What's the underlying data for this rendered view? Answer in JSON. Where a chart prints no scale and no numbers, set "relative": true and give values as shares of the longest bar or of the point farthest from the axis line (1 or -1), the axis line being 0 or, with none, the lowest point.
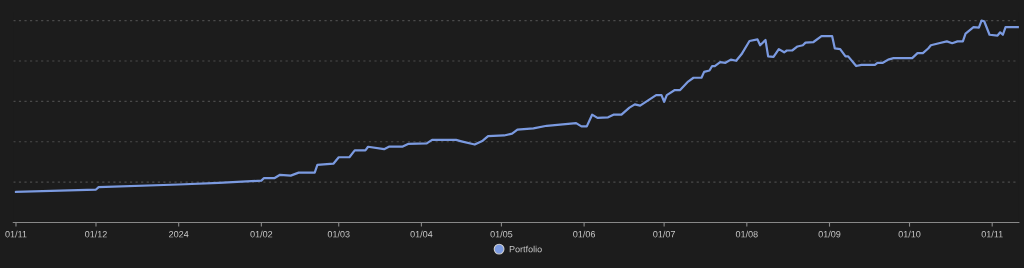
{
  "chart_data": {
    "type": "line",
    "relative": true,
    "grid": "y",
    "legend": "bottom",
    "marker": "none",
    "line_style": "solid",
    "xlim": [
      "2023-10-31",
      "2024-11-11"
    ],
    "xticks": [
      {
        "value": "2023-11-01",
        "label": "01/11"
      },
      {
        "value": "2023-12-01",
        "label": "01/12"
      },
      {
        "value": "2024-01-01",
        "label": "2024"
      },
      {
        "value": "2024-02-01",
        "label": "01/02"
      },
      {
        "value": "2024-03-01",
        "label": "01/03"
      },
      {
        "value": "2024-04-01",
        "label": "01/04"
      },
      {
        "value": "2024-05-01",
        "label": "01/05"
      },
      {
        "value": "2024-06-01",
        "label": "01/06"
      },
      {
        "value": "2024-07-01",
        "label": "01/07"
      },
      {
        "value": "2024-08-01",
        "label": "01/08"
      },
      {
        "value": "2024-09-01",
        "label": "01/09"
      },
      {
        "value": "2024-10-01",
        "label": "01/10"
      },
      {
        "value": "2024-11-01",
        "label": "01/11"
      }
    ],
    "x": [
      "2023-11-01",
      "2023-12-01",
      "2023-12-02",
      "2024-01-01",
      "2024-01-16",
      "2024-02-01",
      "2024-02-02",
      "2024-02-06",
      "2024-02-08",
      "2024-02-12",
      "2024-02-15",
      "2024-02-21",
      "2024-02-22",
      "2024-02-28",
      "2024-03-01",
      "2024-03-05",
      "2024-03-07",
      "2024-03-11",
      "2024-03-12",
      "2024-03-18",
      "2024-03-20",
      "2024-03-25",
      "2024-03-27",
      "2024-04-03",
      "2024-04-05",
      "2024-04-14",
      "2024-04-16",
      "2024-04-21",
      "2024-04-24",
      "2024-04-26",
      "2024-05-02",
      "2024-05-05",
      "2024-05-07",
      "2024-05-13",
      "2024-05-18",
      "2024-05-21",
      "2024-05-29",
      "2024-05-31",
      "2024-06-02",
      "2024-06-04",
      "2024-06-06",
      "2024-06-10",
      "2024-06-12",
      "2024-06-15",
      "2024-06-18",
      "2024-06-20",
      "2024-06-22",
      "2024-06-28",
      "2024-06-30",
      "2024-07-01",
      "2024-07-02",
      "2024-07-05",
      "2024-07-07",
      "2024-07-10",
      "2024-07-12",
      "2024-07-15",
      "2024-07-16",
      "2024-07-18",
      "2024-07-19",
      "2024-07-20",
      "2024-07-22",
      "2024-07-24",
      "2024-07-26",
      "2024-07-28",
      "2024-07-30",
      "2024-08-02",
      "2024-08-05",
      "2024-08-06",
      "2024-08-08",
      "2024-08-09",
      "2024-08-11",
      "2024-08-13",
      "2024-08-15",
      "2024-08-16",
      "2024-08-18",
      "2024-08-20",
      "2024-08-22",
      "2024-08-23",
      "2024-08-26",
      "2024-08-29",
      "2024-09-02",
      "2024-09-03",
      "2024-09-05",
      "2024-09-07",
      "2024-09-08",
      "2024-09-11",
      "2024-09-13",
      "2024-09-18",
      "2024-09-19",
      "2024-09-21",
      "2024-09-23",
      "2024-09-25",
      "2024-10-02",
      "2024-10-04",
      "2024-10-06",
      "2024-10-08",
      "2024-10-09",
      "2024-10-12",
      "2024-10-15",
      "2024-10-17",
      "2024-10-19",
      "2024-10-21",
      "2024-10-22",
      "2024-10-25",
      "2024-10-27",
      "2024-10-28",
      "2024-10-29",
      "2024-10-31",
      "2024-11-03",
      "2024-11-04",
      "2024-11-05",
      "2024-11-06",
      "2024-11-11"
    ],
    "series": [
      {
        "name": "Portfolio",
        "color": "#7b9ae0",
        "values": [
          0.151,
          0.163,
          0.175,
          0.188,
          0.196,
          0.207,
          0.22,
          0.22,
          0.236,
          0.232,
          0.247,
          0.247,
          0.285,
          0.291,
          0.323,
          0.323,
          0.357,
          0.357,
          0.375,
          0.363,
          0.376,
          0.376,
          0.389,
          0.392,
          0.409,
          0.409,
          0.402,
          0.386,
          0.405,
          0.428,
          0.431,
          0.44,
          0.46,
          0.466,
          0.479,
          0.482,
          0.492,
          0.476,
          0.476,
          0.534,
          0.518,
          0.521,
          0.534,
          0.534,
          0.569,
          0.585,
          0.579,
          0.631,
          0.631,
          0.598,
          0.631,
          0.656,
          0.656,
          0.698,
          0.717,
          0.717,
          0.746,
          0.753,
          0.775,
          0.775,
          0.794,
          0.791,
          0.807,
          0.801,
          0.833,
          0.899,
          0.907,
          0.878,
          0.904,
          0.823,
          0.82,
          0.859,
          0.843,
          0.852,
          0.852,
          0.872,
          0.878,
          0.891,
          0.894,
          0.923,
          0.923,
          0.862,
          0.859,
          0.823,
          0.823,
          0.775,
          0.781,
          0.781,
          0.791,
          0.791,
          0.807,
          0.814,
          0.814,
          0.839,
          0.839,
          0.862,
          0.878,
          0.888,
          0.897,
          0.888,
          0.897,
          0.897,
          0.936,
          0.968,
          0.965,
          1.0,
          0.997,
          0.93,
          0.926,
          0.942,
          0.93,
          0.968,
          0.968
        ]
      }
    ]
  }
}
